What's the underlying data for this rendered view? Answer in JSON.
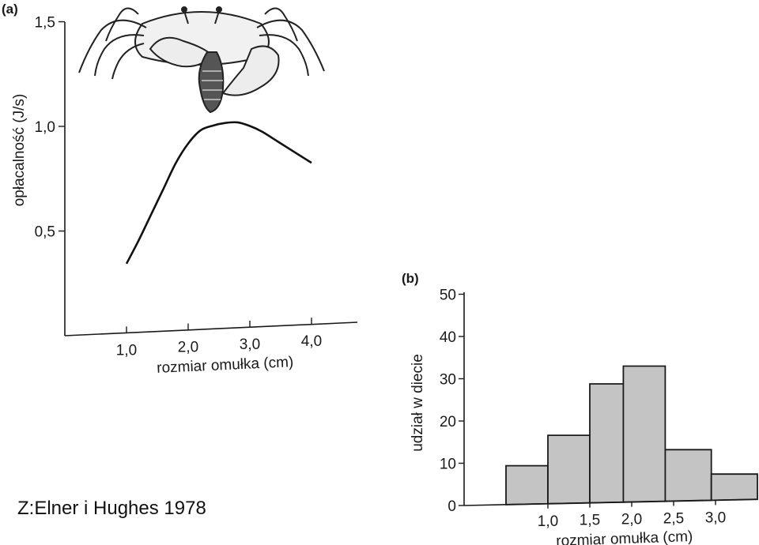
{
  "credit": "Z:Elner i Hughes 1978",
  "illustration": {
    "icon": "crab-holding-mussel-icon"
  },
  "chart_data": [
    {
      "panel": "(a)",
      "type": "line",
      "xlabel": "rozmiar omułka (cm)",
      "ylabel": "opłacalność (J/s)",
      "xlim": [
        0,
        4.7
      ],
      "ylim": [
        0,
        1.5
      ],
      "xticks": [
        1.0,
        2.0,
        3.0,
        4.0
      ],
      "xtick_labels": [
        "1,0",
        "2,0",
        "3,0",
        "4,0"
      ],
      "yticks": [
        0.5,
        1.0,
        1.5
      ],
      "ytick_labels": [
        "0,5",
        "1,0",
        "1,5"
      ],
      "series": [
        {
          "x": [
            1.0,
            1.2,
            1.4,
            1.6,
            1.8,
            2.0,
            2.2,
            2.4,
            2.6,
            2.8,
            3.0,
            3.2,
            3.4,
            3.6,
            3.8,
            4.0
          ],
          "y": [
            0.33,
            0.44,
            0.56,
            0.68,
            0.8,
            0.89,
            0.95,
            0.97,
            0.98,
            0.98,
            0.96,
            0.93,
            0.89,
            0.85,
            0.81,
            0.77
          ]
        }
      ]
    },
    {
      "panel": "(b)",
      "type": "bar",
      "xlabel": "rozmiar omułka (cm)",
      "ylabel": "udział w diecie",
      "xlim": [
        0,
        3.5
      ],
      "ylim": [
        0,
        50
      ],
      "xticks": [
        1.0,
        1.5,
        2.0,
        2.5,
        3.0
      ],
      "xtick_labels": [
        "1,0",
        "1,5",
        "2,0",
        "2,5",
        "3,0"
      ],
      "yticks": [
        0,
        10,
        20,
        30,
        40,
        50
      ],
      "ytick_labels": [
        "0",
        "10",
        "20",
        "30",
        "40",
        "50"
      ],
      "bins": [
        {
          "from": 0.5,
          "to": 1.0,
          "value": 9
        },
        {
          "from": 1.0,
          "to": 1.5,
          "value": 16
        },
        {
          "from": 1.5,
          "to": 1.9,
          "value": 28
        },
        {
          "from": 1.9,
          "to": 2.4,
          "value": 32
        },
        {
          "from": 2.4,
          "to": 2.95,
          "value": 12
        },
        {
          "from": 2.95,
          "to": 3.5,
          "value": 6
        }
      ]
    }
  ]
}
